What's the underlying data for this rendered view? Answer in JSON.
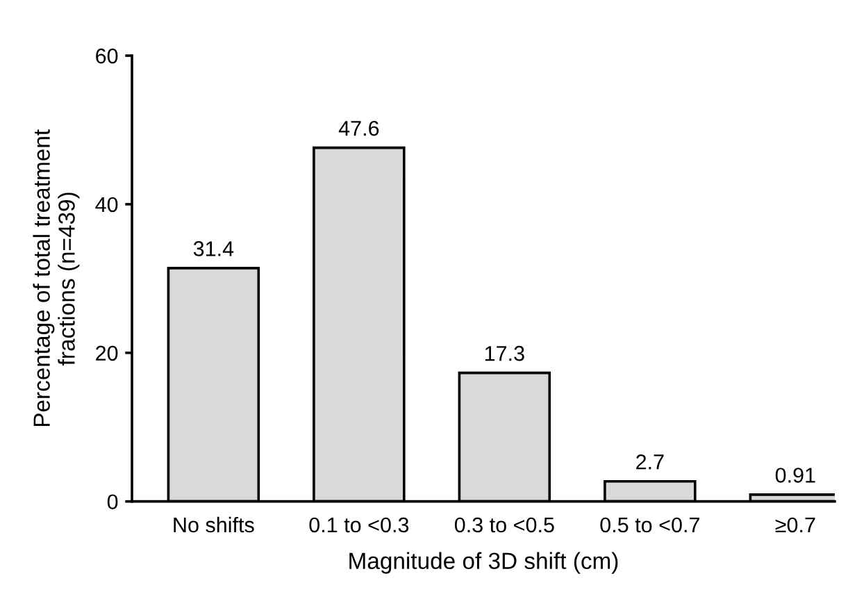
{
  "chart_data": {
    "type": "bar",
    "xlabel": "Magnitude of 3D shift (cm)",
    "ylabel": "Percentage of total treatment\nfractions (n=439)",
    "categories": [
      "No shifts",
      "0.1 to <0.3",
      "0.3 to <0.5",
      "0.5 to <0.7",
      "≥0.7"
    ],
    "values": [
      31.4,
      47.6,
      17.3,
      2.7,
      0.91
    ],
    "color": "#d9d9d9",
    "ylim": [
      0,
      60
    ],
    "yticks": [
      0,
      20,
      40,
      60
    ],
    "data_labels": true,
    "grid": false
  }
}
